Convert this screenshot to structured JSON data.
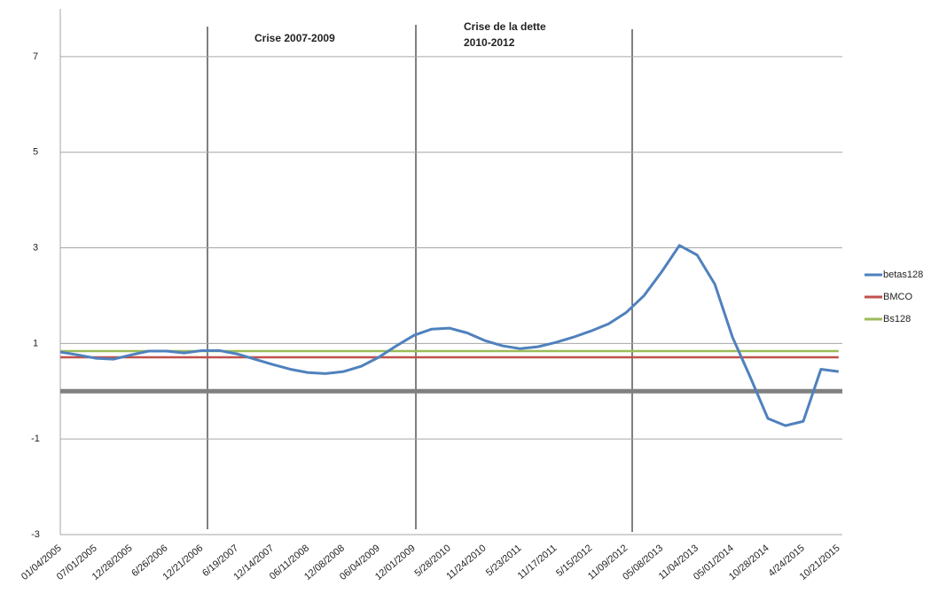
{
  "chart_data": {
    "type": "line",
    "annotations": [
      "Crise 2007-2009",
      "Crise de la dette",
      "2010-2012"
    ],
    "categories": [
      "01/04/2005",
      null,
      "07/01/2005",
      null,
      "12/28/2005",
      null,
      "6/26/2006",
      null,
      "12/21/2006",
      null,
      "6/19/2007",
      null,
      "12/14/2007",
      null,
      "06/11/2008",
      null,
      "12/08/2008",
      null,
      "06/04/2009",
      null,
      "12/01/2009",
      null,
      "5/28/2010",
      null,
      "11/24/2010",
      null,
      "5/23/2011",
      null,
      "11/17/2011",
      null,
      "5/15/2012",
      null,
      "11/09/2012",
      null,
      "05/08/2013",
      null,
      "11/04/2013",
      null,
      "05/01/2014",
      null,
      "10/28/2014",
      null,
      "4/24/2015",
      null,
      "10/21/2015"
    ],
    "series": [
      {
        "name": "betas128",
        "color": "#4f81bd",
        "values": [
          0.82,
          0.76,
          0.69,
          0.67,
          0.76,
          0.84,
          0.84,
          0.8,
          0.85,
          0.85,
          0.78,
          0.67,
          0.56,
          0.46,
          0.39,
          0.37,
          0.41,
          0.52,
          0.71,
          0.95,
          1.17,
          1.3,
          1.32,
          1.22,
          1.06,
          0.95,
          0.89,
          0.93,
          1.02,
          1.13,
          1.26,
          1.41,
          1.65,
          2.0,
          2.5,
          3.05,
          2.85,
          2.24,
          1.13,
          0.3,
          -0.57,
          -0.72,
          -0.63,
          0.46,
          0.41
        ]
      },
      {
        "name": "BMCO",
        "color": "#c0504d",
        "values": [
          0.71,
          0.71,
          0.71,
          0.71,
          0.71,
          0.71,
          0.71,
          0.71,
          0.71,
          0.71,
          0.71,
          0.71,
          0.71,
          0.71,
          0.71,
          0.71,
          0.71,
          0.71,
          0.71,
          0.71,
          0.71,
          0.71,
          0.71,
          0.71,
          0.71,
          0.71,
          0.71,
          0.71,
          0.71,
          0.71,
          0.71,
          0.71,
          0.71,
          0.71,
          0.71,
          0.71,
          0.71,
          0.71,
          0.71,
          0.71,
          0.71,
          0.71,
          0.71,
          0.71,
          0.71
        ]
      },
      {
        "name": "Bs128",
        "color": "#9bbb59",
        "values": [
          0.84,
          0.84,
          0.84,
          0.84,
          0.84,
          0.84,
          0.84,
          0.84,
          0.84,
          0.84,
          0.84,
          0.84,
          0.84,
          0.84,
          0.84,
          0.84,
          0.84,
          0.84,
          0.84,
          0.84,
          0.84,
          0.84,
          0.84,
          0.84,
          0.84,
          0.84,
          0.84,
          0.84,
          0.84,
          0.84,
          0.84,
          0.84,
          0.84,
          0.84,
          0.84,
          0.84,
          0.84,
          0.84,
          0.84,
          0.84,
          0.84,
          0.84,
          0.84,
          0.84,
          0.84
        ]
      }
    ],
    "ylim": [
      -3,
      8
    ],
    "yticks": [
      -3,
      -1,
      1,
      3,
      5,
      7
    ],
    "grid": true,
    "legend": "right"
  }
}
